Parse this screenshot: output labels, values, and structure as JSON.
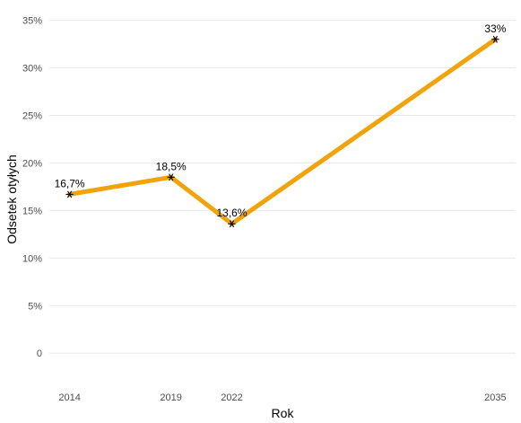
{
  "chart_data": {
    "type": "line",
    "title": "",
    "xlabel": "Rok",
    "ylabel": "Odsetek otyłych",
    "x": [
      2014,
      2019,
      2022,
      2035
    ],
    "xlim": [
      2013,
      2036
    ],
    "ylim": [
      -3,
      36
    ],
    "y_ticks": [
      {
        "value": 0,
        "label": "0"
      },
      {
        "value": 5,
        "label": "5%"
      },
      {
        "value": 10,
        "label": "10%"
      },
      {
        "value": 15,
        "label": "15%"
      },
      {
        "value": 20,
        "label": "20%"
      },
      {
        "value": 25,
        "label": "25%"
      },
      {
        "value": 30,
        "label": "30%"
      },
      {
        "value": 35,
        "label": "35%"
      }
    ],
    "x_ticks": [
      {
        "value": 2014,
        "label": "2014"
      },
      {
        "value": 2019,
        "label": "2019"
      },
      {
        "value": 2022,
        "label": "2022"
      },
      {
        "value": 2035,
        "label": "2035"
      }
    ],
    "series": [
      {
        "values": [
          16.7,
          18.5,
          13.6,
          33
        ],
        "data_labels": [
          "16,7%",
          "18,5%",
          "13,6%",
          "33%"
        ],
        "color": "#f0a30a",
        "marker": "asterisk"
      }
    ],
    "grid": "horizontal",
    "legend": "none"
  }
}
